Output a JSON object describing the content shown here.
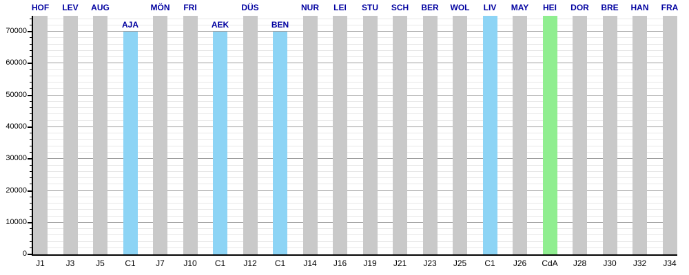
{
  "chart_data": {
    "type": "bar",
    "title": "",
    "xlabel": "",
    "ylabel": "",
    "ylim": [
      0,
      75000
    ],
    "y_major_tick_step": 10000,
    "y_minor_tick_step": 2000,
    "y_tick_labels": [
      "0",
      "10000",
      "20000",
      "30000",
      "40000",
      "50000",
      "60000",
      "70000"
    ],
    "grid": true,
    "legend_position": "none",
    "note": "Gray bars reach the top of the plot (clipped at 75000); light blue Champions League (C1) bars vs AJA, AEK, BEN stop at 70000; labels for clipped bars sit above the plot, labels for 70000 bars sit just above the bar top.",
    "palette": {
      "gray": "#C9C9C9",
      "blue": "#8DD4F5",
      "green": "#90EE90"
    },
    "styles": {
      "opponent_label_color": "#0000A0",
      "axis_text_color": "#000000",
      "axis_line_color": "#000000",
      "grid_minor_color": "#e7e7e7",
      "grid_major_color": "#9a9a9a",
      "background": "#ffffff"
    },
    "bars": [
      {
        "match": "J1",
        "opponent": "HOF",
        "value": 75000,
        "color": "gray"
      },
      {
        "match": "J3",
        "opponent": "LEV",
        "value": 75000,
        "color": "gray"
      },
      {
        "match": "J5",
        "opponent": "AUG",
        "value": 75000,
        "color": "gray"
      },
      {
        "match": "C1",
        "opponent": "AJA",
        "value": 70000,
        "color": "blue"
      },
      {
        "match": "J7",
        "opponent": "MÖN",
        "value": 75000,
        "color": "gray"
      },
      {
        "match": "J10",
        "opponent": "FRI",
        "value": 75000,
        "color": "gray"
      },
      {
        "match": "C1",
        "opponent": "AEK",
        "value": 70000,
        "color": "blue"
      },
      {
        "match": "J12",
        "opponent": "DÜS",
        "value": 75000,
        "color": "gray"
      },
      {
        "match": "C1",
        "opponent": "BEN",
        "value": 70000,
        "color": "blue"
      },
      {
        "match": "J14",
        "opponent": "NUR",
        "value": 75000,
        "color": "gray"
      },
      {
        "match": "J16",
        "opponent": "LEI",
        "value": 75000,
        "color": "gray"
      },
      {
        "match": "J19",
        "opponent": "STU",
        "value": 75000,
        "color": "gray"
      },
      {
        "match": "J21",
        "opponent": "SCH",
        "value": 75000,
        "color": "gray"
      },
      {
        "match": "J23",
        "opponent": "BER",
        "value": 75000,
        "color": "gray"
      },
      {
        "match": "J25",
        "opponent": "WOL",
        "value": 75000,
        "color": "gray"
      },
      {
        "match": "C1",
        "opponent": "LIV",
        "value": 75000,
        "color": "blue"
      },
      {
        "match": "J26",
        "opponent": "MAY",
        "value": 75000,
        "color": "gray"
      },
      {
        "match": "CdA",
        "opponent": "HEI",
        "value": 75000,
        "color": "green"
      },
      {
        "match": "J28",
        "opponent": "DOR",
        "value": 75000,
        "color": "gray"
      },
      {
        "match": "J30",
        "opponent": "BRE",
        "value": 75000,
        "color": "gray"
      },
      {
        "match": "J32",
        "opponent": "HAN",
        "value": 75000,
        "color": "gray"
      },
      {
        "match": "J34",
        "opponent": "FRA",
        "value": 75000,
        "color": "gray"
      }
    ]
  }
}
